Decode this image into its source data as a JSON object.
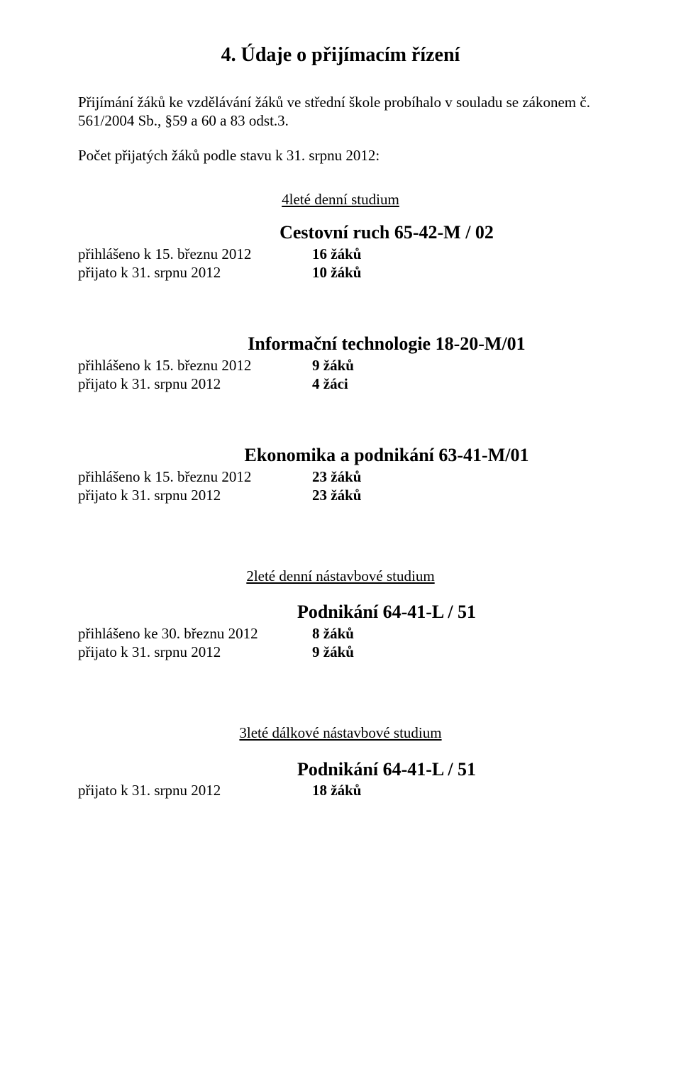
{
  "heading": "4. Údaje o přijímacím řízení",
  "intro": "Přijímání žáků ke vzdělávání žáků ve střední škole probíhalo v souladu se zákonem č. 561/2004 Sb., §59 a 60 a 83 odst.3.",
  "count_line": "Počet přijatých žáků podle stavu k 31. srpnu 2012:",
  "group1": {
    "subhead": "4leté denní studium",
    "title": "Cestovní ruch 65-42-M / 02",
    "r1_label": "přihlášeno  k 15. březnu 2012",
    "r1_value": "16 žáků",
    "r2_label": "přijato k 31. srpnu 2012",
    "r2_value": "10 žáků"
  },
  "group2": {
    "title": "Informační technologie 18-20-M/01",
    "r1_label": "přihlášeno k 15. březnu 2012",
    "r1_value": "9 žáků",
    "r2_label": "přijato k 31. srpnu 2012",
    "r2_value": "4 žáci"
  },
  "group3": {
    "title": "Ekonomika a podnikání  63-41-M/01",
    "r1_label": "přihlášeno k 15. březnu 2012",
    "r1_value": "23 žáků",
    "r2_label": "přijato k 31. srpnu 2012",
    "r2_value": "23 žáků"
  },
  "group4": {
    "subhead": "2leté denní nástavbové studium",
    "title": "Podnikání 64-41-L / 51",
    "r1_label": "přihlášeno ke 30. březnu 2012",
    "r1_value": "8 žáků",
    "r2_label": "přijato k 31. srpnu 2012",
    "r2_value": "9 žáků"
  },
  "group5": {
    "subhead": "3leté dálkové nástavbové studium",
    "title": "Podnikání 64-41-L / 51",
    "r1_label": "přijato k 31. srpnu 2012",
    "r1_value": "18 žáků"
  }
}
